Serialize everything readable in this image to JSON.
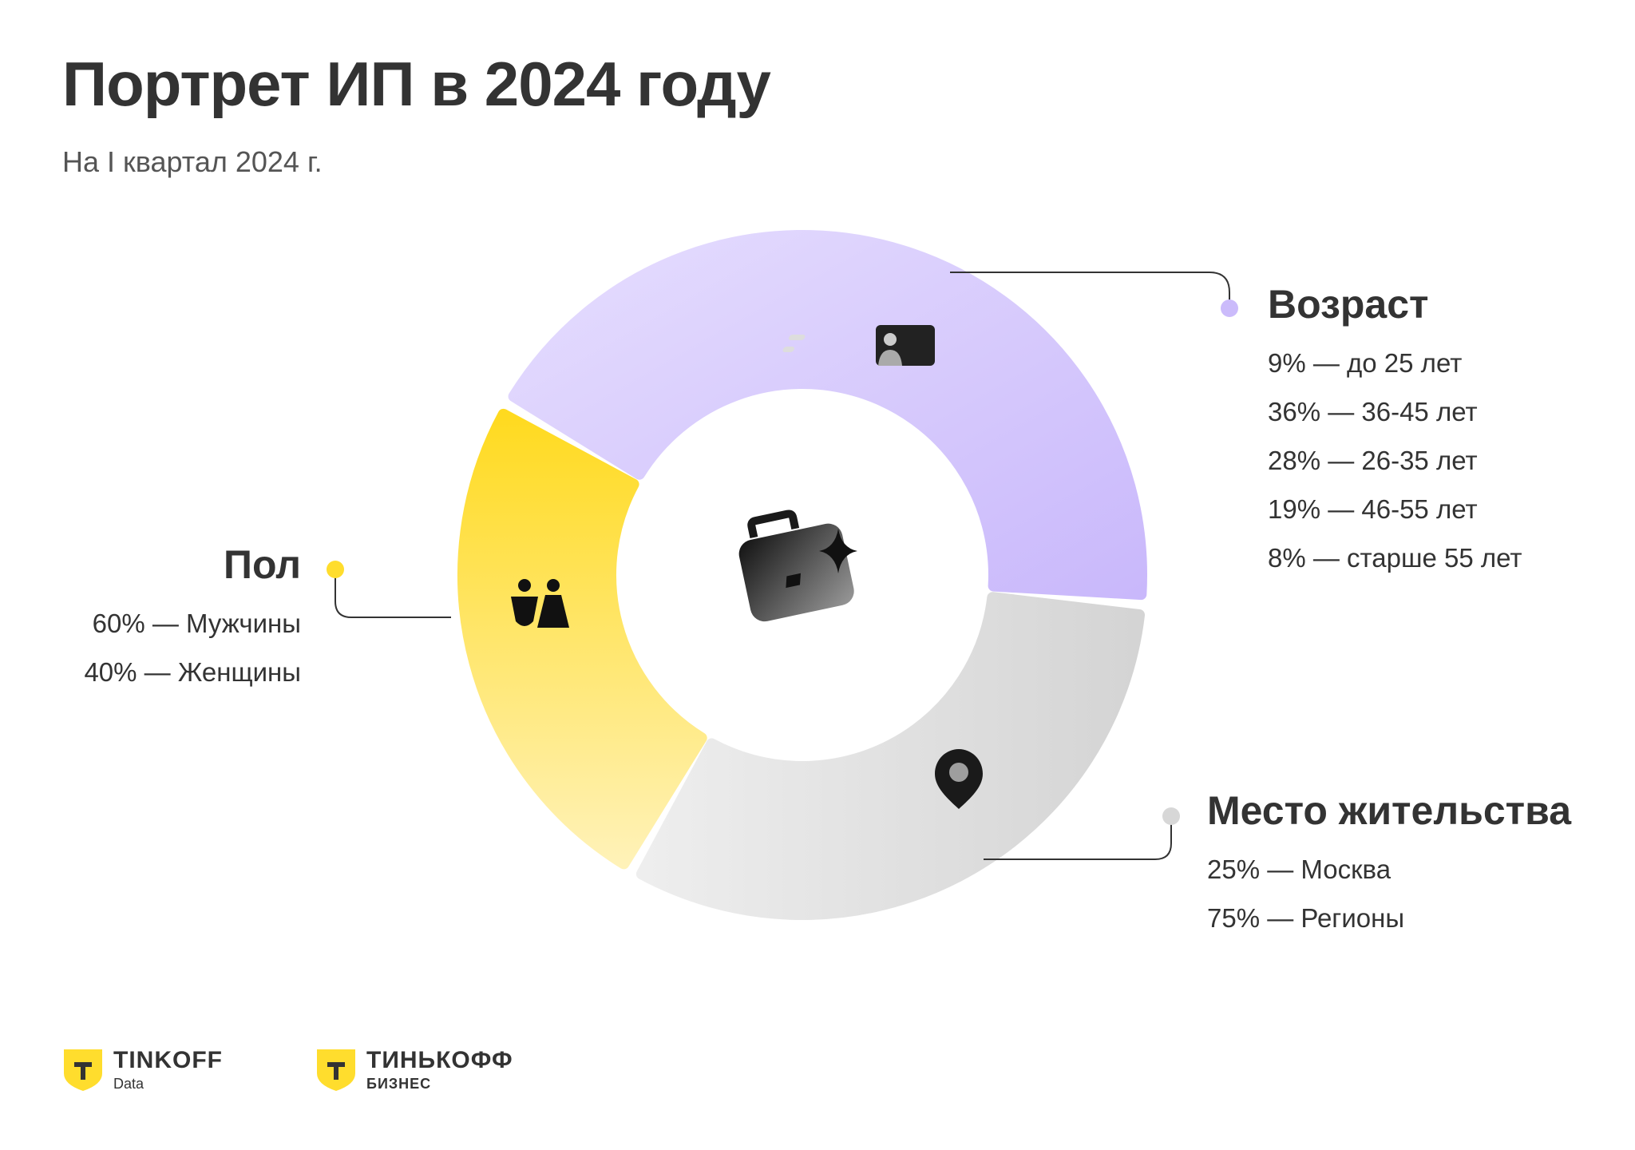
{
  "header": {
    "title": "Портрет ИП в 2024 году",
    "subtitle": "На I квартал 2024 г."
  },
  "chart_data": {
    "type": "pie",
    "style": "donut",
    "categories": [
      "Возраст",
      "Место жительства",
      "Пол"
    ],
    "colors": [
      "#D4C6FD",
      "#DCDCDC",
      "#FDE04F"
    ],
    "icons": [
      "id-card-icon",
      "map-pin-icon",
      "people-icon"
    ],
    "center_icon": "briefcase-sparkle-icon",
    "sections": {
      "age": {
        "title": "Возраст",
        "color": "#CBBBFB",
        "items": [
          "9% — до 25 лет",
          "36% — 36-45 лет",
          "28% — 26-35 лет",
          "19% — 46-55 лет",
          "8% — старше 55 лет"
        ],
        "values": [
          {
            "label": "до 25 лет",
            "value": 9
          },
          {
            "label": "36-45 лет",
            "value": 36
          },
          {
            "label": "26-35 лет",
            "value": 28
          },
          {
            "label": "46-55 лет",
            "value": 19
          },
          {
            "label": "старше 55 лет",
            "value": 8
          }
        ]
      },
      "gender": {
        "title": "Пол",
        "color": "#FFDD2D",
        "items": [
          "60% — Мужчины",
          "40% — Женщины"
        ],
        "values": [
          {
            "label": "Мужчины",
            "value": 60
          },
          {
            "label": "Женщины",
            "value": 40
          }
        ]
      },
      "residence": {
        "title": "Место жительства",
        "color": "#D7D7D7",
        "items": [
          "25% — Москва",
          "75% — Регионы"
        ],
        "values": [
          {
            "label": "Москва",
            "value": 25
          },
          {
            "label": "Регионы",
            "value": 75
          }
        ]
      }
    }
  },
  "logos": {
    "data": {
      "name": "TINKOFF",
      "sub": "Data",
      "color": "#FFDD2D"
    },
    "business": {
      "name": "ТИНЬКОФФ",
      "sub": "БИЗНЕС",
      "color": "#FFDD2D"
    }
  }
}
